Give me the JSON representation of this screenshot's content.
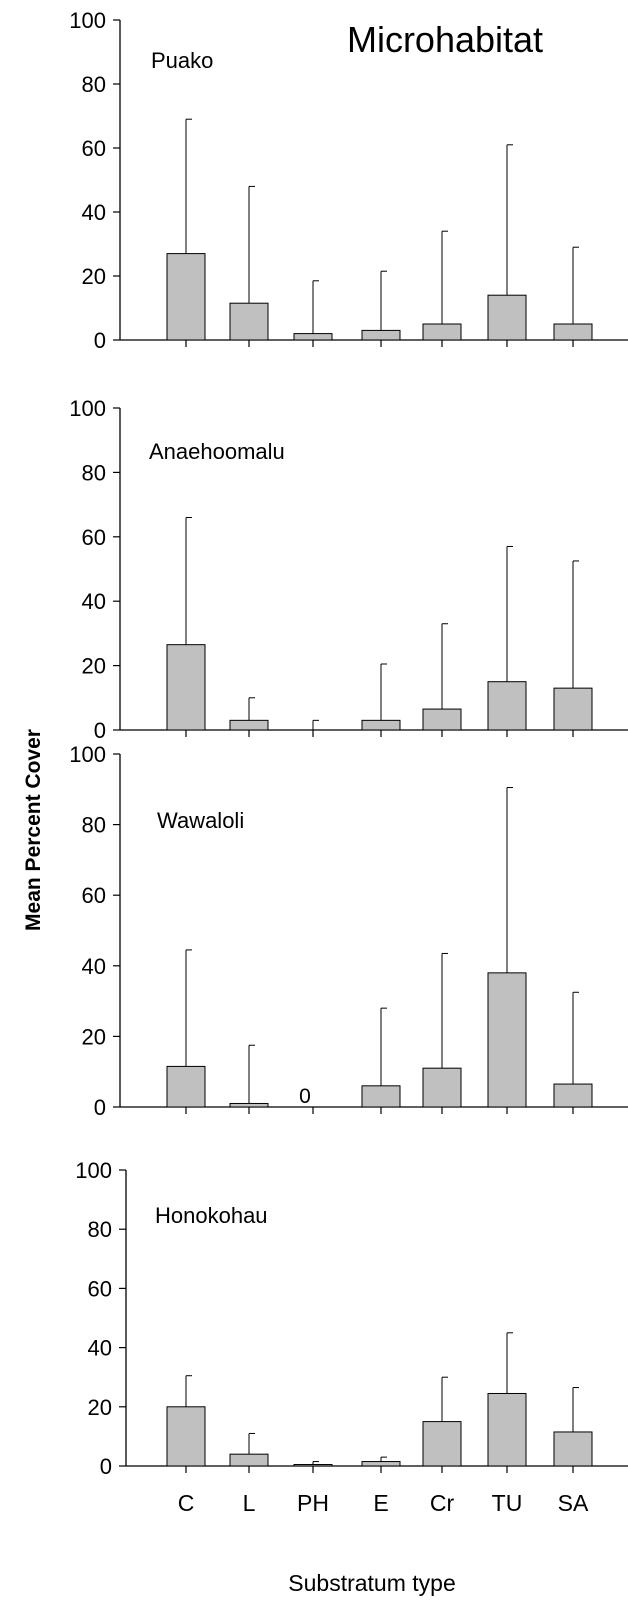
{
  "figure": {
    "title": "Microhabitat",
    "ylabel": "Mean Percent Cover",
    "xlabel": "Substratum type"
  },
  "chart_data": [
    {
      "type": "bar",
      "title": "Puako",
      "categories": [
        "C",
        "L",
        "PH",
        "E",
        "Cr",
        "TU",
        "SA"
      ],
      "values": [
        27,
        11.5,
        2,
        3,
        5,
        14,
        5
      ],
      "error_upper": [
        69,
        48,
        18.5,
        21.5,
        34,
        61,
        29
      ],
      "ylim": [
        0,
        100
      ],
      "yticks": [
        0,
        20,
        40,
        60,
        80,
        100
      ],
      "annotations": []
    },
    {
      "type": "bar",
      "title": "Anaehoomalu",
      "categories": [
        "C",
        "L",
        "PH",
        "E",
        "Cr",
        "TU",
        "SA"
      ],
      "values": [
        26.5,
        3,
        0,
        3,
        6.5,
        15,
        13
      ],
      "error_upper": [
        66,
        10,
        3,
        20.5,
        33,
        57,
        52.5
      ],
      "ylim": [
        0,
        100
      ],
      "yticks": [
        0,
        20,
        40,
        60,
        80,
        100
      ],
      "annotations": []
    },
    {
      "type": "bar",
      "title": "Wawaloli",
      "categories": [
        "C",
        "L",
        "PH",
        "E",
        "Cr",
        "TU",
        "SA"
      ],
      "values": [
        11.5,
        1,
        0,
        6,
        11,
        38,
        6.5
      ],
      "error_upper": [
        44.5,
        17.5,
        null,
        28,
        43.5,
        90.5,
        32.5
      ],
      "ylim": [
        0,
        100
      ],
      "yticks": [
        0,
        20,
        40,
        60,
        80,
        100
      ],
      "annotations": [
        {
          "category": "PH",
          "text": "0"
        }
      ]
    },
    {
      "type": "bar",
      "title": "Honokohau",
      "categories": [
        "C",
        "L",
        "PH",
        "E",
        "Cr",
        "TU",
        "SA"
      ],
      "values": [
        20,
        4,
        0.5,
        1.5,
        15,
        24.5,
        11.5
      ],
      "error_upper": [
        30.5,
        11,
        1.5,
        3,
        30,
        45,
        26.5
      ],
      "ylim": [
        0,
        100
      ],
      "yticks": [
        0,
        20,
        40,
        60,
        80,
        100
      ],
      "annotations": []
    }
  ],
  "colors": {
    "bar_fill": "#c0c0c0",
    "axis": "#000000"
  }
}
